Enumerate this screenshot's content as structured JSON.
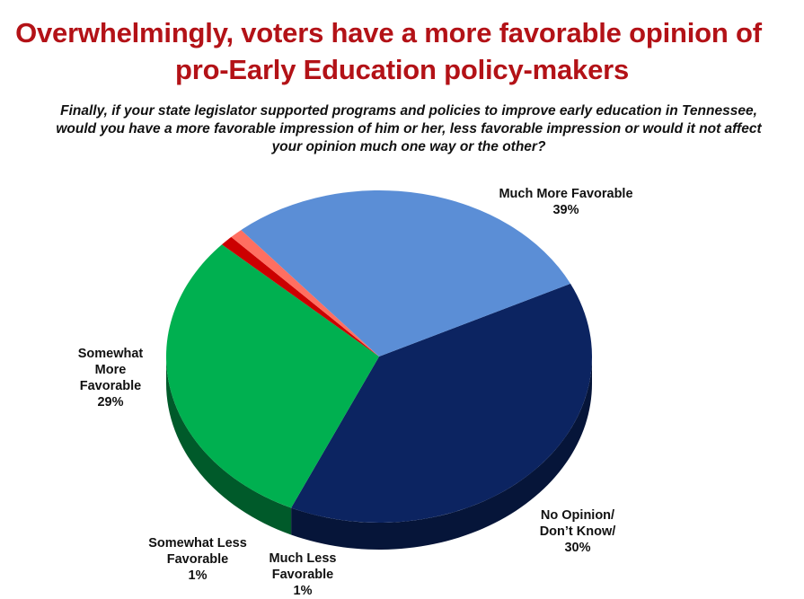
{
  "chart_data": {
    "type": "pie",
    "title": "Overwhelmingly, voters have a more favorable opinion of pro-Early Education policy-makers",
    "title_lines": [
      "Overwhelmingly, voters have a more favorable opinion of",
      "pro-Early Education policy-makers"
    ],
    "subtitle_lines": [
      "Finally, if your state legislator supported programs and policies to improve early education in Tennessee,",
      "would you have a more favorable impression of him or her, less favorable impression or would it not affect",
      "your opinion much one way or the other?"
    ],
    "slices": [
      {
        "label": "Much More Favorable",
        "label_lines": [
          "Much More Favorable"
        ],
        "value": 39,
        "value_label": "39%",
        "color": "#0c2461",
        "side_color": "#061539"
      },
      {
        "label": "No Opinion/ Don’t Know/",
        "label_lines": [
          "No Opinion/",
          "Don’t Know/"
        ],
        "value": 30,
        "value_label": "30%",
        "color": "#00b050",
        "side_color": "#005a2a"
      },
      {
        "label": "Much Less Favorable",
        "label_lines": [
          "Much Less",
          "Favorable"
        ],
        "value": 1,
        "value_label": "1%",
        "color": "#cc0000",
        "side_color": "#7a0000"
      },
      {
        "label": "Somewhat Less Favorable",
        "label_lines": [
          "Somewhat Less",
          "Favorable"
        ],
        "value": 1,
        "value_label": "1%",
        "color": "#ff6f61",
        "side_color": "#b0403a"
      },
      {
        "label": "Somewhat More Favorable",
        "label_lines": [
          "Somewhat",
          "More",
          "Favorable"
        ],
        "value": 29,
        "value_label": "29%",
        "color": "#5b8ed6",
        "side_color": "#2f5a93"
      }
    ]
  }
}
